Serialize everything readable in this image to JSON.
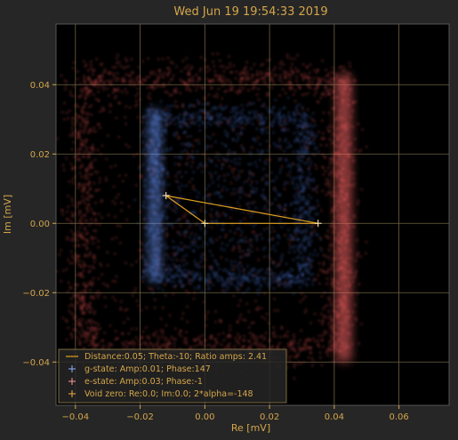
{
  "chart_data": {
    "type": "scatter",
    "title": "Wed Jun 19 19:54:33 2019",
    "xlabel": "Re [mV]",
    "ylabel": "Im [mV]",
    "xlim": [
      -0.046,
      0.0755
    ],
    "ylim": [
      -0.0525,
      0.0575
    ],
    "xticks": [
      -0.04,
      -0.02,
      0.0,
      0.02,
      0.04,
      0.06
    ],
    "yticks": [
      -0.04,
      -0.02,
      0.0,
      0.02,
      0.04
    ],
    "xtick_labels": [
      "−0.04",
      "−0.02",
      "0.00",
      "0.02",
      "0.04",
      "0.06"
    ],
    "ytick_labels": [
      "−0.04",
      "−0.02",
      "0.00",
      "0.02",
      "0.04"
    ],
    "grid": true,
    "legend_position": "bottom-left",
    "colors": {
      "background": "#262626",
      "plot_background": "#000000",
      "axis_text": "#d4a64a",
      "grid": "#6e6444",
      "g_state": "#4a78d8",
      "e_state": "#e85050",
      "line": "#e0a020",
      "marker": "#ffe6b0"
    },
    "point_clouds": [
      {
        "name": "g-state",
        "color": "#4a78d8",
        "square": {
          "x": [
            -0.016,
            0.031
          ],
          "y": [
            -0.016,
            0.031
          ]
        }
      },
      {
        "name": "e-state",
        "color": "#e85050",
        "square": {
          "x": [
            -0.038,
            0.042
          ],
          "y": [
            -0.036,
            0.042
          ]
        }
      }
    ],
    "markers": [
      {
        "name": "g-state",
        "x": -0.012,
        "y": 0.008
      },
      {
        "name": "e-state",
        "x": 0.035,
        "y": 0.0
      },
      {
        "name": "Void zero",
        "x": 0.0,
        "y": 0.0
      }
    ],
    "legend": [
      {
        "label": "Distance:0.05; Theta:-10; Ratio amps: 2.41",
        "marker": "line"
      },
      {
        "label": "g-state: Amp:0.01; Phase:147",
        "marker": "plus-blue"
      },
      {
        "label": "e-state: Amp:0.03; Phase:-1",
        "marker": "plus-red"
      },
      {
        "label": "Void zero: Re:0.0; Im:0.0; 2*alpha=-148",
        "marker": "plus-orange"
      }
    ]
  }
}
